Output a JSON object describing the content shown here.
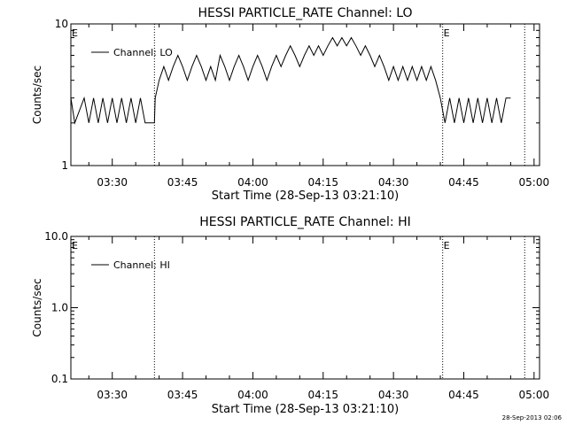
{
  "footer_timestamp": "28-Sep-2013 02:06",
  "chart_data": [
    {
      "type": "line",
      "title": "HESSI PARTICLE_RATE Channel: LO",
      "xlabel": "Start Time (28-Sep-13 03:21:10)",
      "ylabel": "Counts/sec",
      "y_scale": "log",
      "ylim": [
        1,
        10
      ],
      "y_ticks": [
        {
          "value": 1,
          "label": "1"
        },
        {
          "value": 10,
          "label": "10"
        }
      ],
      "xlim": [
        "03:21:10",
        "05:01:10"
      ],
      "x_ticks": [
        "03:30",
        "03:45",
        "04:00",
        "04:15",
        "04:30",
        "04:45",
        "05:00"
      ],
      "legend": {
        "label": "Channel: LO",
        "position": "top-left"
      },
      "event_lines": [
        {
          "time": "03:39:00",
          "label": ""
        },
        {
          "time": "04:40:30",
          "label": "E"
        },
        {
          "time": "04:58:00",
          "label": ""
        }
      ],
      "event_markers": [
        {
          "time": "03:21:10",
          "label": "E"
        }
      ],
      "series": [
        {
          "name": "Channel: LO",
          "points": [
            [
              "03:21:10",
              3
            ],
            [
              "03:22:00",
              2
            ],
            [
              "03:24:00",
              3
            ],
            [
              "03:25:00",
              2
            ],
            [
              "03:26:00",
              3
            ],
            [
              "03:27:00",
              2
            ],
            [
              "03:28:00",
              3
            ],
            [
              "03:29:00",
              2
            ],
            [
              "03:30:00",
              3
            ],
            [
              "03:31:00",
              2
            ],
            [
              "03:32:00",
              3
            ],
            [
              "03:33:00",
              2
            ],
            [
              "03:34:00",
              3
            ],
            [
              "03:35:00",
              2
            ],
            [
              "03:36:00",
              3
            ],
            [
              "03:37:00",
              2
            ],
            [
              "03:39:00",
              2
            ],
            [
              "03:39:10",
              3
            ],
            [
              "03:40:00",
              4
            ],
            [
              "03:41:00",
              5
            ],
            [
              "03:42:00",
              4
            ],
            [
              "03:43:00",
              5
            ],
            [
              "03:44:00",
              6
            ],
            [
              "03:45:00",
              5
            ],
            [
              "03:46:00",
              4
            ],
            [
              "03:47:00",
              5
            ],
            [
              "03:48:00",
              6
            ],
            [
              "03:49:00",
              5
            ],
            [
              "03:50:00",
              4
            ],
            [
              "03:51:00",
              5
            ],
            [
              "03:52:00",
              4
            ],
            [
              "03:53:00",
              6
            ],
            [
              "03:54:00",
              5
            ],
            [
              "03:55:00",
              4
            ],
            [
              "03:56:00",
              5
            ],
            [
              "03:57:00",
              6
            ],
            [
              "03:58:00",
              5
            ],
            [
              "03:59:00",
              4
            ],
            [
              "04:00:00",
              5
            ],
            [
              "04:01:00",
              6
            ],
            [
              "04:02:00",
              5
            ],
            [
              "04:03:00",
              4
            ],
            [
              "04:04:00",
              5
            ],
            [
              "04:05:00",
              6
            ],
            [
              "04:06:00",
              5
            ],
            [
              "04:07:00",
              6
            ],
            [
              "04:08:00",
              7
            ],
            [
              "04:09:00",
              6
            ],
            [
              "04:10:00",
              5
            ],
            [
              "04:11:00",
              6
            ],
            [
              "04:12:00",
              7
            ],
            [
              "04:13:00",
              6
            ],
            [
              "04:14:00",
              7
            ],
            [
              "04:15:00",
              6
            ],
            [
              "04:16:00",
              7
            ],
            [
              "04:17:00",
              8
            ],
            [
              "04:18:00",
              7
            ],
            [
              "04:19:00",
              8
            ],
            [
              "04:20:00",
              7
            ],
            [
              "04:21:00",
              8
            ],
            [
              "04:22:00",
              7
            ],
            [
              "04:23:00",
              6
            ],
            [
              "04:24:00",
              7
            ],
            [
              "04:25:00",
              6
            ],
            [
              "04:26:00",
              5
            ],
            [
              "04:27:00",
              6
            ],
            [
              "04:28:00",
              5
            ],
            [
              "04:29:00",
              4
            ],
            [
              "04:30:00",
              5
            ],
            [
              "04:31:00",
              4
            ],
            [
              "04:32:00",
              5
            ],
            [
              "04:33:00",
              4
            ],
            [
              "04:34:00",
              5
            ],
            [
              "04:35:00",
              4
            ],
            [
              "04:36:00",
              5
            ],
            [
              "04:37:00",
              4
            ],
            [
              "04:38:00",
              5
            ],
            [
              "04:39:00",
              4
            ],
            [
              "04:40:00",
              3
            ],
            [
              "04:41:00",
              2
            ],
            [
              "04:42:00",
              3
            ],
            [
              "04:43:00",
              2
            ],
            [
              "04:44:00",
              3
            ],
            [
              "04:45:00",
              2
            ],
            [
              "04:46:00",
              3
            ],
            [
              "04:47:00",
              2
            ],
            [
              "04:48:00",
              3
            ],
            [
              "04:49:00",
              2
            ],
            [
              "04:50:00",
              3
            ],
            [
              "04:51:00",
              2
            ],
            [
              "04:52:00",
              3
            ],
            [
              "04:53:00",
              2
            ],
            [
              "04:54:00",
              3
            ],
            [
              "04:55:00",
              3
            ]
          ]
        }
      ]
    },
    {
      "type": "line",
      "title": "HESSI PARTICLE_RATE Channel: HI",
      "xlabel": "Start Time (28-Sep-13 03:21:10)",
      "ylabel": "Counts/sec",
      "y_scale": "log",
      "ylim": [
        0.1,
        10
      ],
      "y_ticks": [
        {
          "value": 0.1,
          "label": "0.1"
        },
        {
          "value": 1,
          "label": "1.0"
        },
        {
          "value": 10,
          "label": "10.0"
        }
      ],
      "xlim": [
        "03:21:10",
        "05:01:10"
      ],
      "x_ticks": [
        "03:30",
        "03:45",
        "04:00",
        "04:15",
        "04:30",
        "04:45",
        "05:00"
      ],
      "legend": {
        "label": "Channel: HI",
        "position": "top-left"
      },
      "event_lines": [
        {
          "time": "03:39:00",
          "label": ""
        },
        {
          "time": "04:40:30",
          "label": "E"
        },
        {
          "time": "04:58:00",
          "label": ""
        }
      ],
      "event_markers": [
        {
          "time": "03:21:10",
          "label": "E"
        }
      ],
      "series": [
        {
          "name": "Channel: HI",
          "points": []
        }
      ]
    }
  ]
}
